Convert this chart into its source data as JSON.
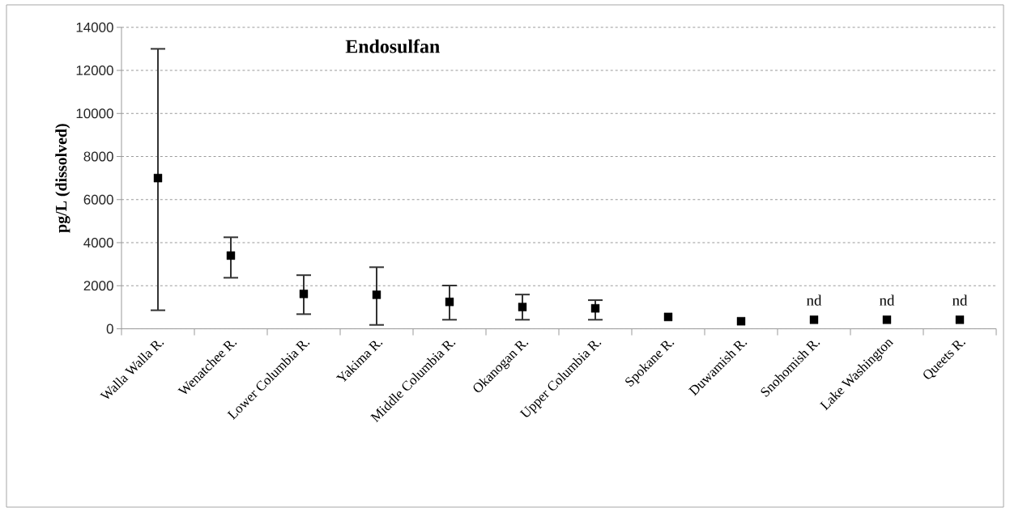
{
  "chart_data": {
    "type": "scatter",
    "title": "Endosulfan",
    "ylabel": "pg/L (dissolved)",
    "categories": [
      "Walla Walla R.",
      "Wenatchee R.",
      "Lower Columbia R.",
      "Yakima R.",
      "Middle Columbia R.",
      "Okanogan R.",
      "Upper Columbia R.",
      "Spokane R.",
      "Duwamish R.",
      "Snohomish R.",
      "Lake Washington",
      "Queets R."
    ],
    "values": [
      7000,
      3400,
      1620,
      1580,
      1250,
      1010,
      950,
      550,
      350,
      420,
      420,
      420
    ],
    "errors": [
      [
        860,
        13000
      ],
      [
        2370,
        4250
      ],
      [
        680,
        2490
      ],
      [
        180,
        2860
      ],
      [
        420,
        2010
      ],
      [
        420,
        1590
      ],
      [
        420,
        1330
      ],
      null,
      null,
      null,
      null,
      null
    ],
    "color": "#000000",
    "ylim": [
      0,
      14000
    ],
    "yticks": [
      0,
      2000,
      4000,
      6000,
      8000,
      10000,
      12000,
      14000
    ],
    "grid": "y",
    "marker": "square",
    "annotations": [
      "nd",
      "nd",
      "nd"
    ]
  }
}
